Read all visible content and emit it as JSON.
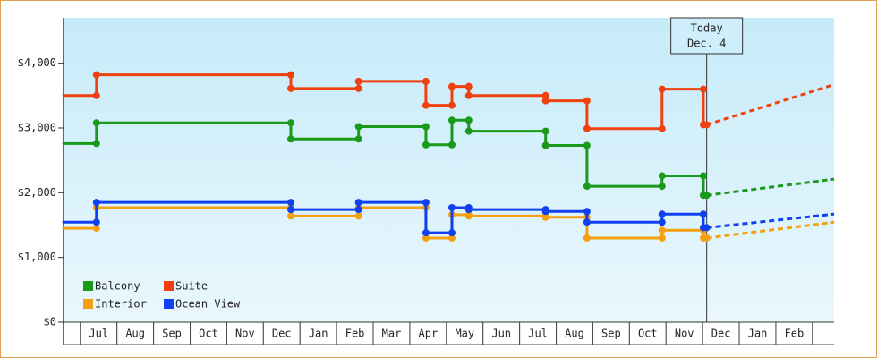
{
  "chart_data": {
    "type": "step",
    "xlim": [
      -0.46,
      20.59
    ],
    "months": [
      "Jul",
      "Aug",
      "Sep",
      "Oct",
      "Nov",
      "Dec",
      "Jan",
      "Feb",
      "Mar",
      "Apr",
      "May",
      "Jun",
      "Jul",
      "Aug",
      "Sep",
      "Oct",
      "Nov",
      "Dec",
      "Jan",
      "Feb"
    ],
    "ylim": [
      0,
      4700
    ],
    "yticks": [
      {
        "value": 0,
        "label": "$0"
      },
      {
        "value": 1000,
        "label": "$1,000"
      },
      {
        "value": 2000,
        "label": "$2,000"
      },
      {
        "value": 3000,
        "label": "$3,000"
      },
      {
        "value": 4000,
        "label": "$4,000"
      }
    ],
    "x": [
      -0.46,
      0.44,
      5.75,
      7.6,
      9.44,
      10.15,
      10.61,
      12.71,
      13.84,
      15.89,
      17.02
    ],
    "today": {
      "x": 17.11,
      "label": [
        "Today",
        "Dec. 4"
      ]
    },
    "series": [
      {
        "name": "Balcony",
        "color": "#1a9a1a",
        "values": [
          2760,
          3080,
          2830,
          3020,
          2740,
          3120,
          2950,
          2730,
          2100,
          2260,
          1960
        ],
        "forecast": 2210
      },
      {
        "name": "Suite",
        "color": "#f04010",
        "values": [
          3500,
          3820,
          3610,
          3720,
          3350,
          3640,
          3500,
          3420,
          2990,
          3600,
          3050
        ],
        "forecast": 3670
      },
      {
        "name": "Interior",
        "color": "#f5a010",
        "values": [
          1450,
          1770,
          1640,
          1770,
          1300,
          1660,
          1640,
          1620,
          1300,
          1420,
          1300
        ],
        "forecast": 1545
      },
      {
        "name": "Ocean View",
        "color": "#1040f0",
        "values": [
          1545,
          1850,
          1740,
          1850,
          1380,
          1770,
          1740,
          1710,
          1545,
          1670,
          1460
        ],
        "forecast": 1670
      }
    ]
  }
}
